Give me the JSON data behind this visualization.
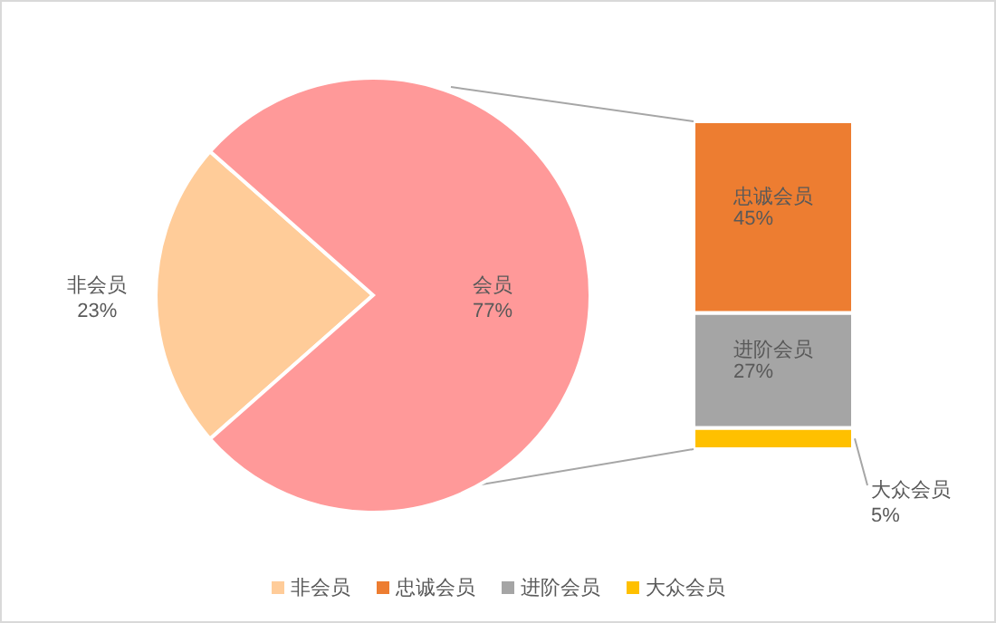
{
  "chart_data": [
    {
      "type": "pie",
      "categories": [
        "非会员",
        "会员"
      ],
      "values": [
        23,
        77
      ],
      "colors": [
        "#ffcc99",
        "#ff9999"
      ],
      "value_labels": [
        "23%",
        "77%"
      ],
      "legend": "bottom"
    },
    {
      "type": "bar",
      "stacked": true,
      "categories": [
        null
      ],
      "series": [
        {
          "name": "大众会员",
          "color": "#ffc000",
          "values": [
            5
          ],
          "value_labels": [
            "5%"
          ]
        },
        {
          "name": "进阶会员",
          "color": "#a5a5a5",
          "values": [
            27
          ],
          "value_labels": [
            "27%"
          ]
        },
        {
          "name": "忠诚会员",
          "color": "#ed7d31",
          "values": [
            45
          ],
          "value_labels": [
            "45%"
          ]
        }
      ],
      "legend": "bottom"
    }
  ]
}
